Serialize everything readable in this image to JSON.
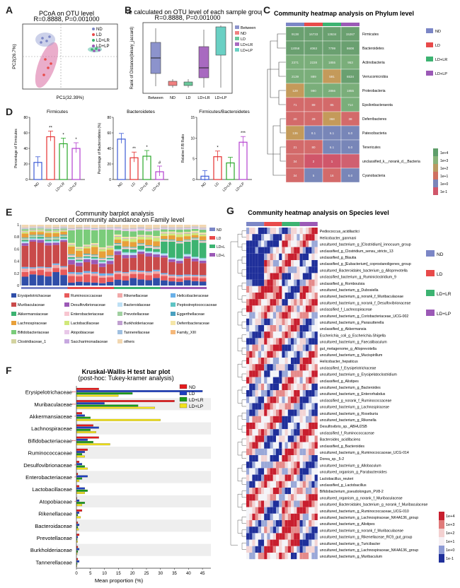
{
  "panel_labels": [
    "A",
    "B",
    "C",
    "D",
    "E",
    "F",
    "G"
  ],
  "colors": {
    "ND": "#7b86c6",
    "LD": "#e84a4a",
    "LDLR": "#3cb371",
    "LDLP": "#9b59b6",
    "F_ND": "#e41a1c",
    "F_LD": "#1f3fbf",
    "F_LDLR": "#1a9a1a",
    "F_LDLP": "#f2e21a"
  },
  "panelA": {
    "title": "PCoA on OTU level",
    "stats": "R=0.8888, P=0.001000",
    "xlabel": "PC1(32.39%)",
    "ylabel": "PC2(26.7%)",
    "legend": [
      "ND",
      "LD",
      "LD+LR",
      "LD+LP"
    ]
  },
  "panelB": {
    "title": "Distance calculated on OTU level of each sample groups",
    "stats": "R=0.8888, P=0.001000",
    "ylabel": "Rank of Distance(binary_jaccard)",
    "categories": [
      "Between",
      "ND",
      "LD",
      "LD+LR",
      "LD+LP"
    ],
    "legend": [
      "Between",
      "ND",
      "LD",
      "LD+LR",
      "LD+LP"
    ]
  },
  "panelC": {
    "title": "Community heatmap analysis on Phylum level",
    "rows": [
      "Firmicutes",
      "Bacteroidetes",
      "Actinobacteria",
      "Verrucomicrobia",
      "Proteobacteria",
      "Epsilonbacteraeota",
      "Deferribacteres",
      "Patescibacteria",
      "Tenericutes",
      "unclassified_k__norank_d__Bacteria",
      "Cyanobacteria"
    ],
    "values": [
      [
        "9138",
        "16733",
        "13634",
        "15267"
      ],
      [
        "12058",
        "4063",
        "7799",
        "8608"
      ],
      [
        "2371",
        "2228",
        "1855",
        "953"
      ],
      [
        "2139",
        "889",
        "591",
        "6534"
      ],
      [
        "129",
        "990",
        "2866",
        "1855"
      ],
      [
        "71",
        "89",
        "85",
        "714"
      ],
      [
        "20",
        "29",
        "368",
        "38"
      ],
      [
        "136",
        "8.1",
        "6.1",
        "6.0"
      ],
      [
        "21",
        "80",
        "6.1",
        "6.0"
      ],
      [
        "34",
        "2",
        "1",
        ""
      ],
      [
        "34",
        "5",
        "16",
        "6.0"
      ]
    ],
    "legend": [
      "ND",
      "LD",
      "LD+LR",
      "LD+LP"
    ],
    "scale": [
      "1e+4",
      "1e+3",
      "1e+2",
      "1e+1",
      "1e+0",
      "1e-1"
    ]
  },
  "panelD": {
    "charts": [
      {
        "title": "Firmicutes",
        "ylabel": "Percentage of Firmicutes",
        "ymax": 80,
        "ticks": [
          "0",
          "20",
          "40",
          "60",
          "80"
        ],
        "values": [
          22,
          55,
          46,
          40
        ],
        "sig": [
          "",
          "**",
          "*",
          "*"
        ]
      },
      {
        "title": "Bacteroidetes",
        "ylabel": "Percentage of Bacteroidetes (%)",
        "ymax": 80,
        "ticks": [
          "0",
          "20",
          "40",
          "60",
          "80"
        ],
        "values": [
          52,
          28,
          30,
          10
        ],
        "sig": [
          "",
          "**",
          "*",
          "#"
        ]
      },
      {
        "title": "Firmicutes/Bacteroidetes",
        "ylabel": "Relative F/B Ratio",
        "ymax": 15,
        "ticks": [
          "0",
          "5",
          "10",
          "15"
        ],
        "values": [
          0.8,
          5.5,
          4,
          9
        ],
        "sig": [
          "",
          "*",
          "",
          "***"
        ]
      }
    ],
    "categories": [
      "ND",
      "LD",
      "LD+LR",
      "LD+LP"
    ]
  },
  "panelE": {
    "title": "Community barplot analysis",
    "subtitle": "Percent of community abundance on Family level",
    "ticks": [
      "0",
      "0.2",
      "0.4",
      "0.6",
      "0.8",
      "1"
    ],
    "legend_groups": [
      "ND",
      "LD",
      "LD+LR",
      "LD+LP"
    ],
    "families": [
      "Erysipelotrichaceae",
      "Ruminococcaceae",
      "Rikenellaceae",
      "Helicobacteraceae",
      "Muribaculaceae",
      "Desulfovibrionaceae",
      "Bacteroidaceae",
      "Peptostreptococcaceae",
      "Akkermansiaceae",
      "Enterobacteriaceae",
      "Prevotellaceae",
      "Eggerthellaceae",
      "Lachnospiraceae",
      "Lactobacillaceae",
      "Burkholderiaceae",
      "Deferribacteraceae",
      "Bifidobacteriaceae",
      "Atopobiaceae",
      "Tannerellaceae",
      "Family_XIII",
      "Clostridiaceae_1",
      "Saccharimonadaceae",
      "others"
    ],
    "family_colors": [
      "#2f4ea8",
      "#e85a5a",
      "#f2a8a8",
      "#6ab0e8",
      "#c94a4a",
      "#9b59b6",
      "#bde0f5",
      "#5ec4c4",
      "#3cb371",
      "#f7c6d0",
      "#a0d0a0",
      "#4aa0c0",
      "#e8a03a",
      "#d0e87a",
      "#c0a0d0",
      "#f5e6a8",
      "#7acc7a",
      "#e8c8e8",
      "#a0c0e0",
      "#f5b87a",
      "#d3d3a0",
      "#c7a8e0",
      "#f2d7b0"
    ]
  },
  "panelF": {
    "title": "Kruskal-Wallis H test bar plot",
    "subtitle": "(post-hoc: Tukey-kramer analysis)",
    "xlabel": "Mean proportion (%)",
    "ticks": [
      "0",
      "5",
      "10",
      "15",
      "20",
      "25",
      "30",
      "35",
      "40",
      "45"
    ],
    "legend": [
      "ND",
      "LD",
      "LD+LR",
      "LD+LP"
    ],
    "families": [
      "Erysipelotrichaceae",
      "Muribaculaceae",
      "Akkermansiaceae",
      "Lachnospiraceae",
      "Bifidobacteriaceae",
      "Ruminococcaceae",
      "Desulfovibrionaceae",
      "Enterobacteriaceae",
      "Lactobacillaceae",
      "Atopobiaceae",
      "Rikenellaceae",
      "Bacteroidaceae",
      "Prevotellaceae",
      "Burkholderiaceae",
      "Tannerellaceae"
    ],
    "values": [
      [
        8,
        45,
        20,
        15
      ],
      [
        35,
        10,
        22,
        28
      ],
      [
        2,
        3,
        5,
        30
      ],
      [
        6,
        8,
        5,
        7
      ],
      [
        8,
        4,
        6,
        12
      ],
      [
        4,
        3,
        2,
        3
      ],
      [
        1,
        2,
        3,
        4
      ],
      [
        0.5,
        4,
        2,
        1
      ],
      [
        1,
        3,
        4,
        3
      ],
      [
        0.2,
        1,
        3,
        2
      ],
      [
        2,
        1,
        0.5,
        1.5
      ],
      [
        0.5,
        1,
        0.5,
        0.8
      ],
      [
        1,
        0.5,
        0.3,
        0.4
      ],
      [
        0.5,
        1,
        0.5,
        0.3
      ],
      [
        0.5,
        1,
        0.3,
        0.2
      ]
    ],
    "marks": [
      "***",
      "***",
      "*",
      "",
      "***",
      "",
      "*",
      "*",
      "",
      "*",
      "",
      "",
      "",
      "",
      ""
    ]
  },
  "panelG": {
    "title": "Community heatmap analysis on Species level",
    "legend": [
      "ND",
      "LD",
      "LD+LR",
      "LD+LP"
    ],
    "scale": [
      "1e+4",
      "1e+3",
      "1e+2",
      "1e+1",
      "1e+0",
      "1e-1"
    ],
    "species": [
      "Pediococcus_acidilactici",
      "Helicobacter_ganmani",
      "uncultured_bacterium_g_[Clostridium]_innocuum_group",
      "unclassified_g_Clostridium_sensu_stricto_13",
      "unclassified_g_Blautia",
      "unclassified_g_[Eubacterium]_coprostanoligenes_group",
      "uncultured_Bacteroidales_bacterium_g_Alloprevotella",
      "unclassified_bacterium_g_Ruminiclostridium_9",
      "unclassified_g_Romboutsia",
      "uncultured_bacterium_g_Dubosiella",
      "uncultured_bacterium_g_norank_f_Muribaculaceae",
      "uncultured_bacterium_g_norank_f_Desulfovibrionaceae",
      "unclassified_f_Lachnospiraceae",
      "uncultured_bacterium_g_Coriobacteriaceae_UCG-002",
      "uncultured_bacterium_g_Parasutterella",
      "unclassified_g_Akkermansia",
      "Escherichia_coli_g_Escherichia-Shigella",
      "uncultured_bacterium_g_Faecalibaculum",
      "gut_metagenome_g_Alloprevotella",
      "uncultured_bacterium_g_Mucispirillum",
      "Helicobacter_hepaticus",
      "unclassified_f_Erysipelotrichaceae",
      "uncultured_bacterium_g_Erysipelatoclostridium",
      "unclassified_g_Alistipes",
      "uncultured_bacterium_g_Bacteroides",
      "uncultured_bacterium_g_Enterorhabdus",
      "unclassified_g_norank_f_Ruminococcaceae",
      "uncultured_bacterium_g_Lachnospiraceae",
      "uncultured_bacterium_g_Roseburia",
      "uncultured_bacterium_g_Rikenella",
      "Desulfovibrio_sp._ABHU2SB",
      "unclassified_f_Ruminococcaceae",
      "Bacteroides_acidifaciens",
      "unclassified_g_Bacteroides",
      "uncultured_bacterium_g_Ruminococcaceae_UCG-014",
      "Dorea_sp._5-2",
      "uncultured_bacterium_g_Allobaculum",
      "uncultured_organism_g_Parabacteroides",
      "Lactobacillus_reuteri",
      "unclassified_g_Lactobacillus",
      "Bifidobacterium_pseudolongum_PV8-2",
      "uncultured_organism_g_norank_f_Muribaculaceae",
      "uncultured_Bacteroidales_bacterium_g_norank_f_Muribaculaceae",
      "uncultured_bacterium_g_Ruminococcaceae_UCG-010",
      "uncultured_bacterium_g_Lachnospiraceae_NK4A136_group",
      "uncultured_bacterium_g_Alistipes",
      "uncultured_bacterium_g_norank_f_Muribaculaceae",
      "uncultured_bacterium_g_Rikenellaceae_RC9_gut_group",
      "uncultured_bacterium_g_Turicibacter",
      "uncultured_bacterium_g_Lachnospiraceae_NK4A136_group",
      "uncultured_bacterium_g_Muribaculum"
    ]
  }
}
